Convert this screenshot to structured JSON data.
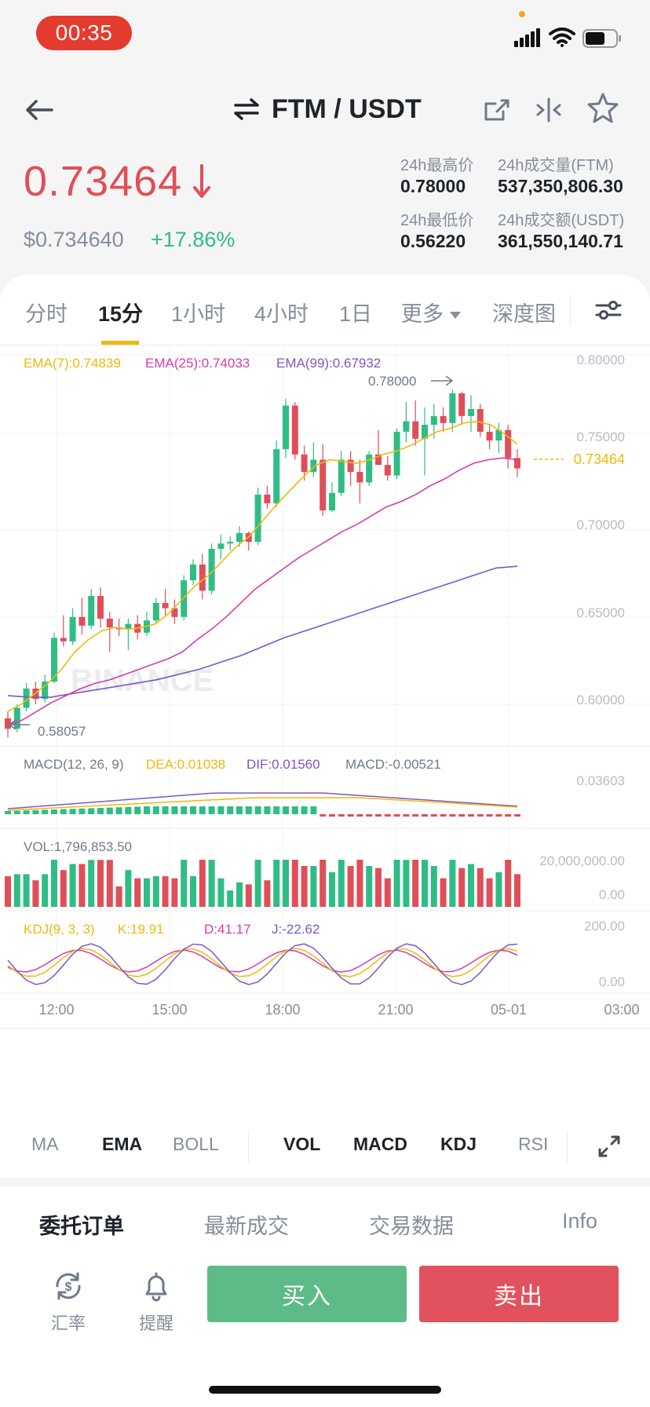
{
  "status_bar": {
    "time": "00:35"
  },
  "header": {
    "pair": "FTM / USDT"
  },
  "price": {
    "last": "0.73464",
    "usd": "$0.734640",
    "change": "+17.86%",
    "high_label": "24h最高价",
    "high_value": "0.78000",
    "low_label": "24h最低价",
    "low_value": "0.56220",
    "vol_label": "24h成交量(FTM)",
    "vol_value": "537,350,806.30",
    "amt_label": "24h成交额(USDT)",
    "amt_value": "361,550,140.71"
  },
  "colors": {
    "up": "#2ebd85",
    "down": "#e04e5a",
    "accent": "#f0b90b",
    "ema7": "#f0b90b",
    "ema25": "#d63cae",
    "ema99": "#7e57c2"
  },
  "tabs": [
    {
      "label": "分时",
      "active": false
    },
    {
      "label": "15分",
      "active": true
    },
    {
      "label": "1小时",
      "active": false
    },
    {
      "label": "4小时",
      "active": false
    },
    {
      "label": "1日",
      "active": false
    },
    {
      "label": "更多",
      "active": false
    },
    {
      "label": "深度图",
      "active": false
    }
  ],
  "chart": {
    "ema_legend": {
      "ema7": "EMA(7):0.74839",
      "ema25": "EMA(25):0.74033",
      "ema99": "EMA(99):0.67932"
    },
    "price_ticks": [
      "0.80000",
      "0.75000",
      "0.70000",
      "0.65000",
      "0.60000"
    ],
    "current_price_label": "0.73464",
    "high_marker": "0.78000",
    "low_marker": "0.58057",
    "watermark": "BINANCE",
    "macd_legend": {
      "title": "MACD(12, 26, 9)",
      "dea": "DEA:0.01038",
      "dif": "DIF:0.01560",
      "macd": "MACD:-0.00521"
    },
    "macd_tick": "0.03603",
    "vol_legend": "VOL:1,796,853.50",
    "vol_ticks": [
      "20,000,000.00",
      "0.00"
    ],
    "kdj_legend": {
      "title": "KDJ(9, 3, 3)",
      "k": "K:19.91",
      "d": "D:41.17",
      "j": "J:-22.62"
    },
    "kdj_ticks": [
      "200.00",
      "0.00"
    ],
    "time_ticks": [
      "12:00",
      "15:00",
      "18:00",
      "21:00",
      "05-01",
      "03:00"
    ]
  },
  "indicators": {
    "ma": "MA",
    "ema": "EMA",
    "boll": "BOLL",
    "vol": "VOL",
    "macd": "MACD",
    "kdj": "KDJ",
    "rsi": "RSI"
  },
  "bottom": {
    "tabs": [
      "委托订单",
      "最新成交",
      "交易数据",
      "Info"
    ],
    "rate_label": "汇率",
    "alert_label": "提醒",
    "buy_label": "买入",
    "sell_label": "卖出"
  },
  "chart_data": {
    "type": "candlestick",
    "interval": "15分",
    "x_ticks": [
      "12:00",
      "15:00",
      "18:00",
      "21:00",
      "05-01",
      "03:00"
    ],
    "ylim": [
      0.578,
      0.8
    ],
    "candles": [
      {
        "o": 0.592,
        "h": 0.596,
        "l": 0.581,
        "c": 0.586
      },
      {
        "o": 0.586,
        "h": 0.6,
        "l": 0.584,
        "c": 0.598
      },
      {
        "o": 0.598,
        "h": 0.612,
        "l": 0.596,
        "c": 0.609
      },
      {
        "o": 0.609,
        "h": 0.613,
        "l": 0.6,
        "c": 0.603
      },
      {
        "o": 0.603,
        "h": 0.617,
        "l": 0.601,
        "c": 0.613
      },
      {
        "o": 0.613,
        "h": 0.641,
        "l": 0.612,
        "c": 0.638
      },
      {
        "o": 0.638,
        "h": 0.651,
        "l": 0.633,
        "c": 0.636
      },
      {
        "o": 0.636,
        "h": 0.655,
        "l": 0.634,
        "c": 0.65
      },
      {
        "o": 0.65,
        "h": 0.661,
        "l": 0.64,
        "c": 0.645
      },
      {
        "o": 0.645,
        "h": 0.666,
        "l": 0.643,
        "c": 0.662
      },
      {
        "o": 0.662,
        "h": 0.667,
        "l": 0.644,
        "c": 0.649
      },
      {
        "o": 0.649,
        "h": 0.653,
        "l": 0.63,
        "c": 0.644
      },
      {
        "o": 0.644,
        "h": 0.649,
        "l": 0.639,
        "c": 0.643
      },
      {
        "o": 0.643,
        "h": 0.649,
        "l": 0.631,
        "c": 0.646
      },
      {
        "o": 0.646,
        "h": 0.651,
        "l": 0.637,
        "c": 0.641
      },
      {
        "o": 0.641,
        "h": 0.653,
        "l": 0.639,
        "c": 0.648
      },
      {
        "o": 0.648,
        "h": 0.661,
        "l": 0.646,
        "c": 0.658
      },
      {
        "o": 0.658,
        "h": 0.666,
        "l": 0.651,
        "c": 0.655
      },
      {
        "o": 0.655,
        "h": 0.66,
        "l": 0.646,
        "c": 0.65
      },
      {
        "o": 0.65,
        "h": 0.674,
        "l": 0.648,
        "c": 0.671
      },
      {
        "o": 0.671,
        "h": 0.683,
        "l": 0.668,
        "c": 0.68
      },
      {
        "o": 0.68,
        "h": 0.686,
        "l": 0.66,
        "c": 0.665
      },
      {
        "o": 0.665,
        "h": 0.692,
        "l": 0.663,
        "c": 0.689
      },
      {
        "o": 0.689,
        "h": 0.697,
        "l": 0.683,
        "c": 0.692
      },
      {
        "o": 0.692,
        "h": 0.696,
        "l": 0.688,
        "c": 0.693
      },
      {
        "o": 0.693,
        "h": 0.702,
        "l": 0.69,
        "c": 0.698
      },
      {
        "o": 0.698,
        "h": 0.699,
        "l": 0.688,
        "c": 0.693
      },
      {
        "o": 0.693,
        "h": 0.724,
        "l": 0.691,
        "c": 0.72
      },
      {
        "o": 0.72,
        "h": 0.725,
        "l": 0.712,
        "c": 0.715
      },
      {
        "o": 0.715,
        "h": 0.751,
        "l": 0.713,
        "c": 0.746
      },
      {
        "o": 0.746,
        "h": 0.775,
        "l": 0.741,
        "c": 0.771
      },
      {
        "o": 0.771,
        "h": 0.773,
        "l": 0.74,
        "c": 0.743
      },
      {
        "o": 0.743,
        "h": 0.748,
        "l": 0.728,
        "c": 0.733
      },
      {
        "o": 0.733,
        "h": 0.75,
        "l": 0.73,
        "c": 0.74
      },
      {
        "o": 0.74,
        "h": 0.749,
        "l": 0.708,
        "c": 0.711
      },
      {
        "o": 0.711,
        "h": 0.727,
        "l": 0.71,
        "c": 0.721
      },
      {
        "o": 0.721,
        "h": 0.745,
        "l": 0.719,
        "c": 0.74
      },
      {
        "o": 0.74,
        "h": 0.745,
        "l": 0.725,
        "c": 0.733
      },
      {
        "o": 0.733,
        "h": 0.74,
        "l": 0.715,
        "c": 0.727
      },
      {
        "o": 0.727,
        "h": 0.745,
        "l": 0.725,
        "c": 0.743
      },
      {
        "o": 0.743,
        "h": 0.757,
        "l": 0.738,
        "c": 0.737
      },
      {
        "o": 0.737,
        "h": 0.742,
        "l": 0.728,
        "c": 0.731
      },
      {
        "o": 0.731,
        "h": 0.758,
        "l": 0.729,
        "c": 0.756
      },
      {
        "o": 0.756,
        "h": 0.773,
        "l": 0.75,
        "c": 0.762
      },
      {
        "o": 0.762,
        "h": 0.774,
        "l": 0.748,
        "c": 0.752
      },
      {
        "o": 0.752,
        "h": 0.77,
        "l": 0.731,
        "c": 0.76
      },
      {
        "o": 0.76,
        "h": 0.772,
        "l": 0.752,
        "c": 0.765
      },
      {
        "o": 0.765,
        "h": 0.77,
        "l": 0.756,
        "c": 0.761
      },
      {
        "o": 0.761,
        "h": 0.78,
        "l": 0.756,
        "c": 0.778
      },
      {
        "o": 0.778,
        "h": 0.779,
        "l": 0.76,
        "c": 0.765
      },
      {
        "o": 0.765,
        "h": 0.777,
        "l": 0.756,
        "c": 0.769
      },
      {
        "o": 0.769,
        "h": 0.772,
        "l": 0.753,
        "c": 0.756
      },
      {
        "o": 0.756,
        "h": 0.76,
        "l": 0.746,
        "c": 0.751
      },
      {
        "o": 0.751,
        "h": 0.761,
        "l": 0.744,
        "c": 0.757
      },
      {
        "o": 0.757,
        "h": 0.76,
        "l": 0.735,
        "c": 0.741
      },
      {
        "o": 0.741,
        "h": 0.746,
        "l": 0.73,
        "c": 0.735
      }
    ],
    "ema7": [
      0.596,
      0.6,
      0.606,
      0.612,
      0.62,
      0.63,
      0.637,
      0.642,
      0.644,
      0.643,
      0.644,
      0.646,
      0.652,
      0.66,
      0.668,
      0.674,
      0.682,
      0.69,
      0.696,
      0.705,
      0.714,
      0.722,
      0.73,
      0.737,
      0.74,
      0.739,
      0.738,
      0.74,
      0.743,
      0.745,
      0.748,
      0.752,
      0.756,
      0.758,
      0.761,
      0.762,
      0.76,
      0.755,
      0.749
    ],
    "ema25": [
      0.588,
      0.591,
      0.596,
      0.601,
      0.605,
      0.609,
      0.612,
      0.614,
      0.617,
      0.62,
      0.623,
      0.626,
      0.63,
      0.637,
      0.643,
      0.65,
      0.658,
      0.666,
      0.672,
      0.678,
      0.684,
      0.689,
      0.694,
      0.699,
      0.703,
      0.708,
      0.713,
      0.716,
      0.72,
      0.725,
      0.729,
      0.734,
      0.738,
      0.74,
      0.741,
      0.74
    ],
    "ema99": [
      0.605,
      0.604,
      0.604,
      0.606,
      0.608,
      0.61,
      0.612,
      0.614,
      0.617,
      0.62,
      0.624,
      0.628,
      0.633,
      0.638,
      0.642,
      0.646,
      0.65,
      0.654,
      0.658,
      0.662,
      0.666,
      0.67,
      0.674,
      0.678,
      0.679
    ],
    "high": 0.78,
    "low": 0.58057,
    "current": 0.73464
  }
}
